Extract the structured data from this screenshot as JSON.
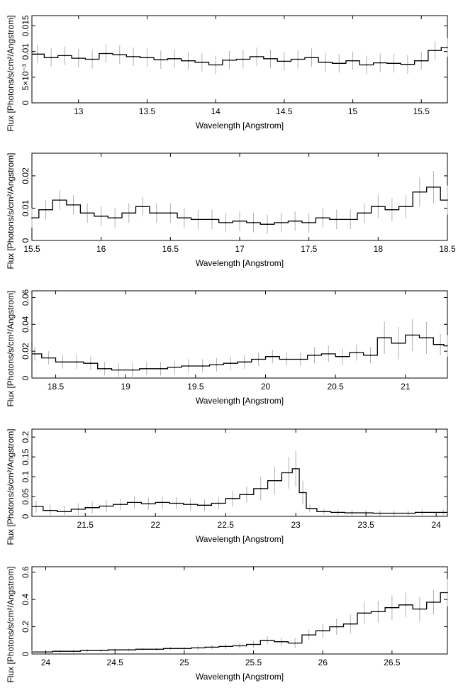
{
  "colors": {
    "background": "#ffffff",
    "axes": "#000000",
    "data_line": "#000000",
    "error_bars": "#b0b0b0"
  },
  "chart_data": [
    {
      "type": "line",
      "style": "step-with-error-bars",
      "xlabel": "Wavelength [Angstrom]",
      "ylabel": "Flux [Photons/s/cm²/Angstrom]",
      "xlim": [
        12.66,
        15.69
      ],
      "ylim": [
        0,
        0.017
      ],
      "xticks": [
        13,
        13.5,
        14,
        14.5,
        15,
        15.5
      ],
      "xtick_labels": [
        "13",
        "13.5",
        "14",
        "14.5",
        "15",
        "15.5"
      ],
      "yticks": [
        0,
        0.005,
        0.01,
        0.015
      ],
      "ytick_labels": [
        "0",
        "5×10⁻³",
        "0.01",
        "0.015"
      ],
      "series": [
        {
          "x": [
            12.7,
            12.8,
            12.9,
            13.0,
            13.1,
            13.2,
            13.3,
            13.4,
            13.5,
            13.6,
            13.7,
            13.8,
            13.9,
            14.0,
            14.1,
            14.2,
            14.3,
            14.4,
            14.5,
            14.6,
            14.7,
            14.8,
            14.9,
            15.0,
            15.1,
            15.2,
            15.3,
            15.4,
            15.5,
            15.6,
            15.69
          ],
          "y": [
            0.0095,
            0.0088,
            0.0092,
            0.0087,
            0.0085,
            0.0096,
            0.0094,
            0.009,
            0.0088,
            0.0084,
            0.0086,
            0.0082,
            0.0079,
            0.0074,
            0.0083,
            0.0085,
            0.009,
            0.0086,
            0.0081,
            0.0085,
            0.0088,
            0.0079,
            0.0077,
            0.0082,
            0.0074,
            0.0078,
            0.0077,
            0.0075,
            0.0082,
            0.0102,
            0.0108
          ],
          "err": [
            0.0018,
            0.0018,
            0.0018,
            0.0018,
            0.0018,
            0.0018,
            0.0018,
            0.0018,
            0.0018,
            0.0018,
            0.0018,
            0.0018,
            0.0018,
            0.0018,
            0.0018,
            0.0018,
            0.0018,
            0.0018,
            0.0018,
            0.0018,
            0.0018,
            0.0018,
            0.0018,
            0.0018,
            0.0018,
            0.0018,
            0.0018,
            0.0018,
            0.0018,
            0.0018,
            0.0018
          ]
        }
      ]
    },
    {
      "type": "line",
      "style": "step-with-error-bars",
      "xlabel": "Wavelength [Angstrom]",
      "ylabel": "Flux [Photons/s/cm²/Angstrom]",
      "xlim": [
        15.5,
        18.5
      ],
      "ylim": [
        0,
        0.027
      ],
      "xticks": [
        15.5,
        16,
        16.5,
        17,
        17.5,
        18,
        18.5
      ],
      "xtick_labels": [
        "15.5",
        "16",
        "16.5",
        "17",
        "17.5",
        "18",
        "18.5"
      ],
      "yticks": [
        0,
        0.01,
        0.02
      ],
      "ytick_labels": [
        "0",
        "0.01",
        "0.02"
      ],
      "series": [
        {
          "x": [
            15.5,
            15.6,
            15.7,
            15.8,
            15.9,
            16.0,
            16.1,
            16.2,
            16.3,
            16.4,
            16.5,
            16.6,
            16.7,
            16.8,
            16.9,
            17.0,
            17.1,
            17.2,
            17.3,
            17.4,
            17.5,
            17.6,
            17.7,
            17.8,
            17.9,
            18.0,
            18.1,
            18.2,
            18.3,
            18.4,
            18.5
          ],
          "y": [
            0.007,
            0.0095,
            0.0125,
            0.011,
            0.0085,
            0.0075,
            0.007,
            0.0085,
            0.0105,
            0.0085,
            0.0085,
            0.007,
            0.0065,
            0.0065,
            0.0055,
            0.006,
            0.0055,
            0.005,
            0.0055,
            0.006,
            0.0055,
            0.007,
            0.0065,
            0.0065,
            0.0085,
            0.0105,
            0.0095,
            0.0105,
            0.015,
            0.0165,
            0.0125
          ],
          "err": [
            0.003,
            0.003,
            0.003,
            0.003,
            0.003,
            0.003,
            0.003,
            0.003,
            0.003,
            0.003,
            0.003,
            0.003,
            0.003,
            0.003,
            0.003,
            0.003,
            0.003,
            0.003,
            0.003,
            0.003,
            0.003,
            0.003,
            0.003,
            0.003,
            0.003,
            0.0035,
            0.0035,
            0.0035,
            0.0045,
            0.005,
            0.0045
          ]
        }
      ]
    },
    {
      "type": "line",
      "style": "step-with-error-bars",
      "xlabel": "Wavelength [Angstrom]",
      "ylabel": "Flux [Photons/s/cm²/Angstrom]",
      "xlim": [
        18.33,
        21.3
      ],
      "ylim": [
        0,
        0.065
      ],
      "xticks": [
        18.5,
        19,
        19.5,
        20,
        20.5,
        21
      ],
      "xtick_labels": [
        "18.5",
        "19",
        "19.5",
        "20",
        "20.5",
        "21"
      ],
      "yticks": [
        0,
        0.02,
        0.04,
        0.06
      ],
      "ytick_labels": [
        "0",
        "0.02",
        "0.04",
        "0.06"
      ],
      "series": [
        {
          "x": [
            18.35,
            18.45,
            18.55,
            18.65,
            18.75,
            18.85,
            18.95,
            19.05,
            19.15,
            19.25,
            19.35,
            19.45,
            19.55,
            19.65,
            19.75,
            19.85,
            19.95,
            20.05,
            20.15,
            20.25,
            20.35,
            20.45,
            20.55,
            20.65,
            20.75,
            20.85,
            20.95,
            21.05,
            21.15,
            21.25,
            21.3
          ],
          "y": [
            0.018,
            0.015,
            0.012,
            0.012,
            0.011,
            0.007,
            0.006,
            0.006,
            0.007,
            0.007,
            0.008,
            0.009,
            0.009,
            0.01,
            0.011,
            0.012,
            0.014,
            0.016,
            0.014,
            0.014,
            0.017,
            0.018,
            0.016,
            0.019,
            0.017,
            0.03,
            0.026,
            0.032,
            0.03,
            0.025,
            0.024
          ],
          "err": [
            0.005,
            0.005,
            0.005,
            0.005,
            0.005,
            0.005,
            0.005,
            0.005,
            0.005,
            0.005,
            0.005,
            0.005,
            0.005,
            0.005,
            0.005,
            0.005,
            0.005,
            0.005,
            0.005,
            0.005,
            0.006,
            0.006,
            0.006,
            0.006,
            0.006,
            0.012,
            0.012,
            0.012,
            0.012,
            0.008,
            0.008
          ]
        }
      ]
    },
    {
      "type": "line",
      "style": "step-with-error-bars",
      "xlabel": "Wavelength [Angstrom]",
      "ylabel": "Flux [Photons/s/cm²/Angstrom]",
      "xlim": [
        21.12,
        24.08
      ],
      "ylim": [
        0,
        0.22
      ],
      "xticks": [
        21.5,
        22,
        22.5,
        23,
        23.5,
        24
      ],
      "xtick_labels": [
        "21.5",
        "22",
        "22.5",
        "23",
        "23.5",
        "24"
      ],
      "yticks": [
        0,
        0.05,
        0.1,
        0.15,
        0.2
      ],
      "ytick_labels": [
        "0",
        "0.05",
        "0.1",
        "0.15",
        "0.2"
      ],
      "series": [
        {
          "x": [
            21.15,
            21.25,
            21.35,
            21.45,
            21.55,
            21.65,
            21.75,
            21.85,
            21.95,
            22.05,
            22.15,
            22.25,
            22.35,
            22.45,
            22.55,
            22.65,
            22.75,
            22.85,
            22.95,
            23.0,
            23.05,
            23.1,
            23.2,
            23.3,
            23.4,
            23.5,
            23.6,
            23.7,
            23.8,
            23.9,
            24.05
          ],
          "y": [
            0.025,
            0.015,
            0.012,
            0.018,
            0.022,
            0.026,
            0.03,
            0.035,
            0.032,
            0.035,
            0.033,
            0.03,
            0.028,
            0.033,
            0.045,
            0.055,
            0.07,
            0.09,
            0.11,
            0.12,
            0.06,
            0.02,
            0.012,
            0.01,
            0.009,
            0.009,
            0.008,
            0.008,
            0.008,
            0.01,
            0.01
          ],
          "err": [
            0.015,
            0.015,
            0.015,
            0.015,
            0.015,
            0.015,
            0.015,
            0.015,
            0.015,
            0.015,
            0.015,
            0.015,
            0.015,
            0.015,
            0.02,
            0.02,
            0.03,
            0.035,
            0.04,
            0.045,
            0.03,
            0.01,
            0.007,
            0.007,
            0.007,
            0.007,
            0.007,
            0.007,
            0.007,
            0.007,
            0.007
          ]
        }
      ]
    },
    {
      "type": "line",
      "style": "step-with-error-bars",
      "xlabel": "Wavelength [Angstrom]",
      "ylabel": "Flux [Photons/s/cm²/Angstrom]",
      "xlim": [
        23.9,
        26.9
      ],
      "ylim": [
        0,
        0.64
      ],
      "xticks": [
        24,
        24.5,
        25,
        25.5,
        26,
        26.5
      ],
      "xtick_labels": [
        "24",
        "24.5",
        "25",
        "25.5",
        "26",
        "26.5"
      ],
      "yticks": [
        0,
        0.2,
        0.4,
        0.6
      ],
      "ytick_labels": [
        "0",
        "0.2",
        "0.4",
        "0.6"
      ],
      "series": [
        {
          "x": [
            23.9,
            24.0,
            24.1,
            24.2,
            24.3,
            24.4,
            24.5,
            24.6,
            24.7,
            24.8,
            24.9,
            25.0,
            25.1,
            25.2,
            25.3,
            25.4,
            25.5,
            25.6,
            25.7,
            25.8,
            25.9,
            26.0,
            26.1,
            26.2,
            26.3,
            26.4,
            26.5,
            26.6,
            26.7,
            26.8,
            26.9
          ],
          "y": [
            0.015,
            0.015,
            0.02,
            0.02,
            0.025,
            0.025,
            0.03,
            0.03,
            0.035,
            0.035,
            0.04,
            0.04,
            0.045,
            0.05,
            0.055,
            0.06,
            0.07,
            0.1,
            0.09,
            0.08,
            0.14,
            0.17,
            0.2,
            0.22,
            0.3,
            0.31,
            0.34,
            0.36,
            0.33,
            0.38,
            0.45
          ],
          "err": [
            0.01,
            0.01,
            0.01,
            0.01,
            0.01,
            0.01,
            0.01,
            0.01,
            0.012,
            0.012,
            0.012,
            0.012,
            0.015,
            0.015,
            0.02,
            0.02,
            0.025,
            0.03,
            0.03,
            0.035,
            0.04,
            0.05,
            0.06,
            0.07,
            0.08,
            0.08,
            0.09,
            0.09,
            0.09,
            0.09,
            0.1
          ]
        }
      ]
    }
  ]
}
